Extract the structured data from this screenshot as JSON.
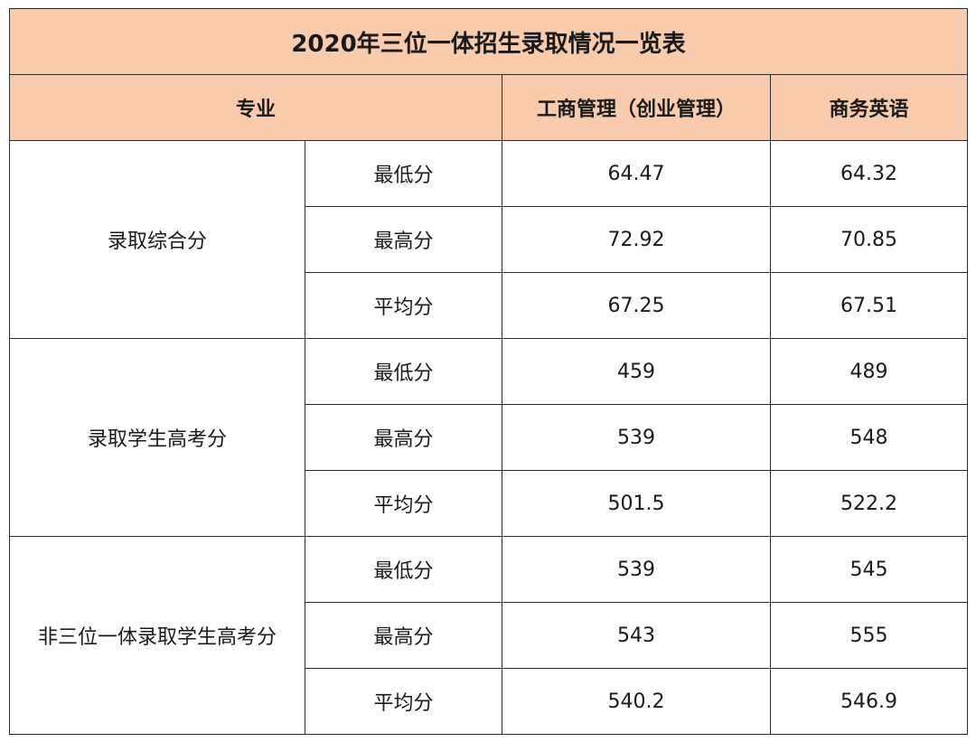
{
  "title": "2020年三位一体招生录取情况一览表",
  "header": {
    "major_label": "专业",
    "col1": "工商管理（创业管理）",
    "col2": "商务英语"
  },
  "groups": [
    {
      "label": "录取综合分",
      "rows": [
        {
          "stat": "最低分",
          "v1": "64.47",
          "v2": "64.32"
        },
        {
          "stat": "最高分",
          "v1": "72.92",
          "v2": "70.85"
        },
        {
          "stat": "平均分",
          "v1": "67.25",
          "v2": "67.51"
        }
      ]
    },
    {
      "label": "录取学生高考分",
      "rows": [
        {
          "stat": "最低分",
          "v1": "459",
          "v2": "489"
        },
        {
          "stat": "最高分",
          "v1": "539",
          "v2": "548"
        },
        {
          "stat": "平均分",
          "v1": "501.5",
          "v2": "522.2"
        }
      ]
    },
    {
      "label": "非三位一体录取学生高考分",
      "rows": [
        {
          "stat": "最低分",
          "v1": "539",
          "v2": "545"
        },
        {
          "stat": "最高分",
          "v1": "543",
          "v2": "555"
        },
        {
          "stat": "平均分",
          "v1": "540.2",
          "v2": "546.9"
        }
      ]
    }
  ]
}
